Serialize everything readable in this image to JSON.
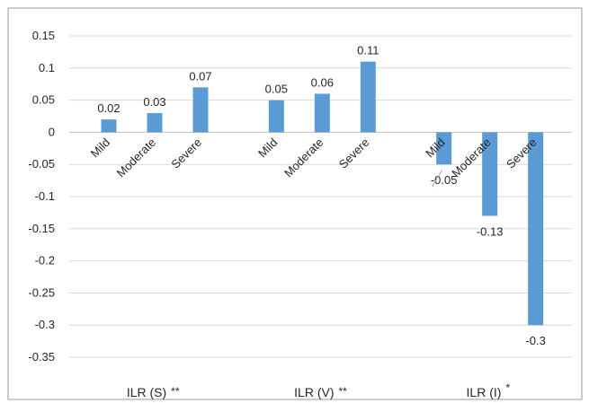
{
  "chart_data": {
    "type": "bar",
    "title": "",
    "xlabel": "",
    "ylabel": "",
    "ylim": [
      -0.35,
      0.15
    ],
    "y_ticks": [
      "0.15",
      "0.1",
      "0.05",
      "0",
      "-0.05",
      "-0.1",
      "-0.15",
      "-0.2",
      "-0.25",
      "-0.3",
      "-0.35"
    ],
    "grid": true,
    "legend": "none",
    "bar_color": "#5b9bd5",
    "groups": [
      {
        "label_main": "ILR (S)",
        "label_mark": "**",
        "categories": [
          "Mild",
          "Moderate",
          "Severe"
        ],
        "values": [
          0.02,
          0.03,
          0.07
        ],
        "value_labels": [
          "0.02",
          "0.03",
          "0.07"
        ]
      },
      {
        "label_main": "ILR (V)",
        "label_mark": "**",
        "categories": [
          "Mild",
          "Moderate",
          "Severe"
        ],
        "values": [
          0.05,
          0.06,
          0.11
        ],
        "value_labels": [
          "0.05",
          "0.06",
          "0.11"
        ]
      },
      {
        "label_main": "ILR (I)",
        "label_mark": "*",
        "categories": [
          "Mild",
          "Moderate",
          "Severe"
        ],
        "values": [
          -0.05,
          -0.13,
          -0.3
        ],
        "value_labels": [
          "-0.05",
          "-0.13",
          "-0.3"
        ]
      }
    ]
  }
}
